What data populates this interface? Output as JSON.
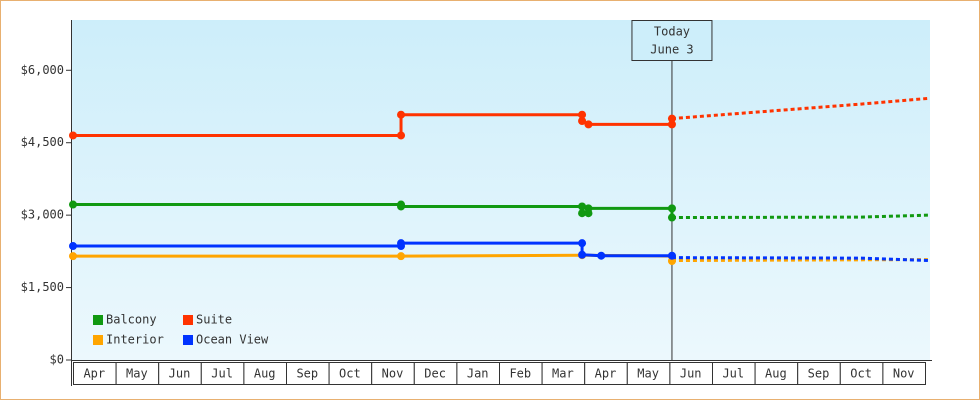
{
  "chart_data": {
    "type": "step-line",
    "categories": [
      "Apr",
      "May",
      "Jun",
      "Jul",
      "Aug",
      "Sep",
      "Oct",
      "Nov",
      "Dec",
      "Jan",
      "Feb",
      "Mar",
      "Apr",
      "May",
      "Jun",
      "Jul",
      "Aug",
      "Sep",
      "Oct",
      "Nov"
    ],
    "xlim": [
      0,
      20
    ],
    "ylim": [
      0,
      7000
    ],
    "yticks": [
      {
        "value": 0,
        "label": "$0"
      },
      {
        "value": 1500,
        "label": "$1,500"
      },
      {
        "value": 3000,
        "label": "$3,000"
      },
      {
        "value": 4500,
        "label": "$4,500"
      },
      {
        "value": 6000,
        "label": "$6,000"
      }
    ],
    "annotation": {
      "x": 14.06,
      "lines": [
        "Today",
        "June 3"
      ]
    },
    "legend": "bottom-left",
    "series": [
      {
        "name": "Balcony",
        "color": "#119911",
        "x": [
          0,
          7.7,
          7.7,
          11.95,
          11.95,
          12.1,
          12.1,
          14.06,
          14.06
        ],
        "values": [
          3220,
          3220,
          3180,
          3180,
          3040,
          3040,
          3140,
          3140,
          2950
        ],
        "forecast_x": [
          14.06,
          18.5,
          20.1
        ],
        "forecast_values": [
          2950,
          2960,
          3000
        ]
      },
      {
        "name": "Suite",
        "color": "#ff3300",
        "x": [
          0,
          7.7,
          7.7,
          11.95,
          11.95,
          12.1,
          14.06,
          14.06
        ],
        "values": [
          4650,
          4650,
          5080,
          5080,
          4950,
          4880,
          4880,
          5000
        ],
        "forecast_x": [
          14.06,
          18.5,
          20.1
        ],
        "forecast_values": [
          5000,
          5300,
          5420
        ]
      },
      {
        "name": "Interior",
        "color": "#ffa500",
        "x": [
          0,
          7.7,
          11.95,
          14.06,
          14.06
        ],
        "values": [
          2150,
          2150,
          2170,
          2150,
          2050
        ],
        "forecast_x": [
          14.06,
          20.1
        ],
        "forecast_values": [
          2060,
          2080
        ]
      },
      {
        "name": "Ocean View",
        "color": "#0033ff",
        "x": [
          0,
          7.7,
          7.7,
          11.95,
          11.95,
          12.4,
          14.06
        ],
        "values": [
          2360,
          2360,
          2420,
          2420,
          2180,
          2160,
          2160
        ],
        "forecast_x": [
          14.06,
          18.5,
          20.1
        ],
        "forecast_values": [
          2120,
          2110,
          2060
        ]
      }
    ]
  }
}
